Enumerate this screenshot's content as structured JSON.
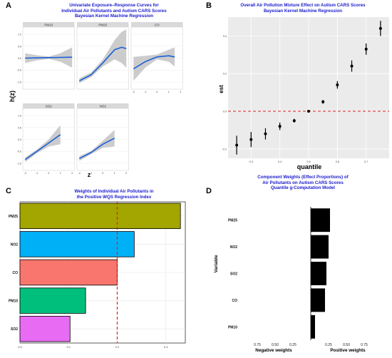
{
  "panels": {
    "A": {
      "letter": "A",
      "title_lines": [
        "Univariate Exposure–Response Curves for",
        "Individual Air Pollutants and Autism CARS Scores",
        "Bayesian Kernel Machine Regression"
      ],
      "ylabel": "h(z)",
      "xlabel": "z"
    },
    "B": {
      "letter": "B",
      "title_lines": [
        "Overall Air Pollution Mixture Effect on Autism CARS Scores",
        "Bayesian Kernel Machine Regression"
      ],
      "ylabel": "est",
      "xlabel": "quantile"
    },
    "C": {
      "letter": "C",
      "title_lines": [
        "Weights of Individual Air Pollutants in",
        "the Positive WQS Regression Index"
      ]
    },
    "D": {
      "letter": "D",
      "title_lines": [
        "Component Weights (Effect Proportions) of",
        "Air Pollutants on Autism CARS Scores",
        "Quantile g-Computation Model"
      ],
      "ylabel": "Variable",
      "xlabel_negative": "Negative weights",
      "xlabel_positive": "Positive weights"
    }
  },
  "colors": {
    "title": "#1a1acd",
    "curve": "#1a5fd6",
    "band": "#c6c6c6",
    "strip": "#d9d9d9",
    "refline": "#e02020",
    "PM25": "#a3a500",
    "NO2": "#00b0f6",
    "CO": "#f8766d",
    "PM10": "#00bf7d",
    "SO2": "#e76bf3"
  },
  "chart_data": [
    {
      "type": "line",
      "panel": "A",
      "facets": [
        "PM10",
        "PM25",
        "CO",
        "SO2",
        "NO2"
      ],
      "x_ticks": [
        "-2",
        "-1",
        "0",
        "1",
        "2"
      ],
      "y_ticks": [
        "-1.0",
        "-0.5",
        "0.0",
        "0.5",
        "1.0"
      ],
      "xlim": [
        -2.2,
        2.2
      ],
      "ylim": [
        -1.3,
        1.3
      ],
      "series": [
        {
          "facet": "PM10",
          "x": [
            -2,
            -1,
            0,
            1,
            2
          ],
          "y": [
            0.0,
            0.01,
            0.02,
            0.03,
            0.04
          ],
          "lower": [
            -0.2,
            -0.1,
            -0.03,
            -0.15,
            -0.4
          ],
          "upper": [
            0.2,
            0.12,
            0.07,
            0.2,
            0.45
          ]
        },
        {
          "facet": "PM25",
          "x": [
            -2,
            -1,
            0,
            1,
            1.6,
            2
          ],
          "y": [
            -0.95,
            -0.7,
            -0.2,
            0.35,
            0.45,
            0.4
          ],
          "lower": [
            -1.05,
            -0.8,
            -0.35,
            -0.05,
            -0.2,
            -0.4
          ],
          "upper": [
            -0.85,
            -0.6,
            -0.05,
            0.75,
            1.1,
            1.2
          ]
        },
        {
          "facet": "CO",
          "x": [
            -2,
            -1,
            0,
            1,
            1.5
          ],
          "y": [
            -0.45,
            -0.15,
            0.05,
            0.1,
            0.05
          ],
          "lower": [
            -0.95,
            -0.4,
            -0.05,
            -0.15,
            -0.35
          ],
          "upper": [
            0.05,
            0.1,
            0.15,
            0.35,
            0.45
          ]
        },
        {
          "facet": "SO2",
          "x": [
            -2,
            -1,
            0,
            1
          ],
          "y": [
            -0.85,
            -0.5,
            -0.15,
            0.2
          ],
          "lower": [
            -0.95,
            -0.58,
            -0.3,
            -0.2
          ],
          "upper": [
            -0.75,
            -0.42,
            0.0,
            0.6
          ]
        },
        {
          "facet": "NO2",
          "x": [
            -2,
            -1,
            0,
            1
          ],
          "y": [
            -0.8,
            -0.55,
            -0.2,
            0.05
          ],
          "lower": [
            -0.9,
            -0.62,
            -0.35,
            -0.3
          ],
          "upper": [
            -0.7,
            -0.48,
            -0.05,
            0.4
          ]
        }
      ]
    },
    {
      "type": "scatter",
      "panel": "B",
      "x": [
        0.25,
        0.3,
        0.35,
        0.4,
        0.45,
        0.5,
        0.55,
        0.6,
        0.65,
        0.7,
        0.75
      ],
      "y": [
        -0.18,
        -0.15,
        -0.12,
        -0.08,
        -0.05,
        0.0,
        0.05,
        0.14,
        0.24,
        0.33,
        0.44
      ],
      "lower": [
        -0.23,
        -0.19,
        -0.15,
        -0.1,
        -0.06,
        -0.005,
        0.04,
        0.12,
        0.21,
        0.3,
        0.4
      ],
      "upper": [
        -0.13,
        -0.11,
        -0.09,
        -0.06,
        -0.04,
        0.005,
        0.06,
        0.16,
        0.27,
        0.36,
        0.48
      ],
      "x_ticks": [
        0.3,
        0.4,
        0.5,
        0.6,
        0.7
      ],
      "x_tick_labels": [
        "0.3",
        "0.4",
        "0.5",
        "0.6",
        "0.7"
      ],
      "y_ticks": [
        -0.2,
        0.0,
        0.2,
        0.4
      ],
      "y_tick_labels": [
        "-0.2",
        "0.0",
        "0.2",
        "0.4"
      ],
      "xlim": [
        0.22,
        0.78
      ],
      "ylim": [
        -0.25,
        0.5
      ],
      "reference_line_y": 0
    },
    {
      "type": "bar",
      "orientation": "horizontal",
      "panel": "C",
      "categories": [
        "PM25",
        "NO2",
        "CO",
        "PM10",
        "SO2"
      ],
      "values": [
        0.33,
        0.235,
        0.2,
        0.135,
        0.103
      ],
      "x_ticks": [
        0.0,
        0.1,
        0.2,
        0.3
      ],
      "x_tick_labels": [
        "0.0",
        "0.1",
        "0.2",
        "0.3"
      ],
      "xlim": [
        0,
        0.34
      ],
      "reference_line_x": 0.2
    },
    {
      "type": "bar",
      "orientation": "horizontal",
      "panel": "D",
      "categories": [
        "PM25",
        "NO2",
        "SO2",
        "CO",
        "PM10"
      ],
      "values": [
        0.27,
        0.25,
        0.22,
        0.2,
        0.06
      ],
      "negative_ticks": [
        "0.75",
        "0.50",
        "0.25"
      ],
      "positive_ticks": [
        "0.25",
        "0.50",
        "0.75"
      ],
      "xlim": [
        -1,
        1
      ]
    }
  ]
}
